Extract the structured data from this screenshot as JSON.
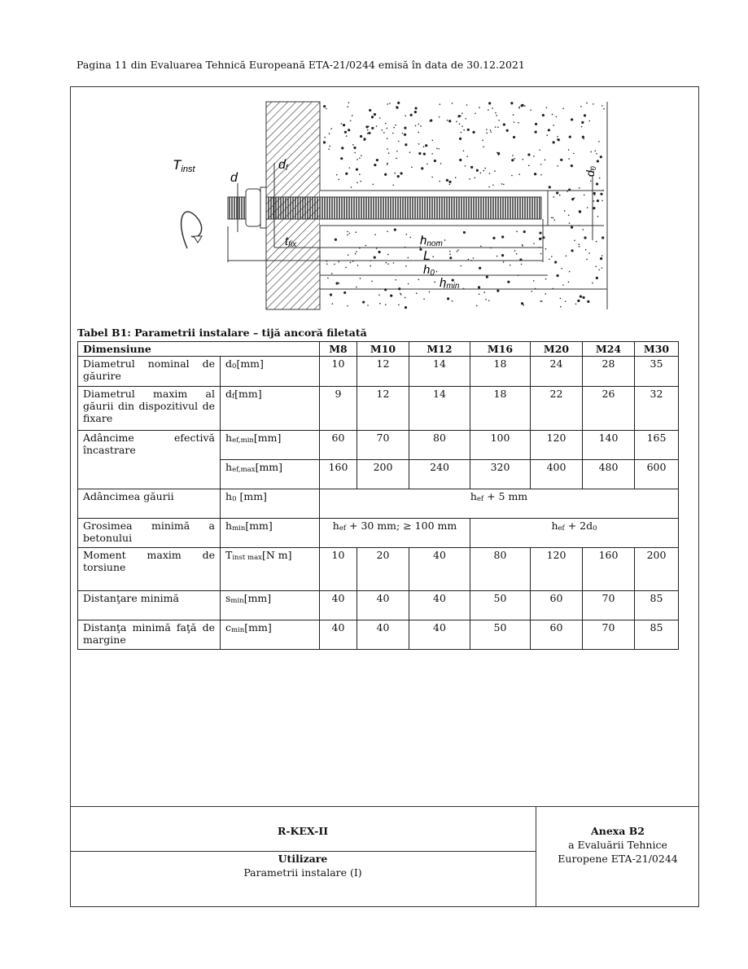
{
  "header": "Pagina 11 din Evaluarea Tehnică Europeană ETA-21/0244 emisă în data de 30.12.2021",
  "diagram": {
    "labels": {
      "tinst": "T",
      "tinst_sub": "inst",
      "d": "d",
      "df": "d",
      "df_sub": "f",
      "d0": "d",
      "d0_sub": "0",
      "tfix": "t",
      "tfix_sub": "fix",
      "hnom": "h",
      "hnom_sub": "nom",
      "L": "L",
      "h0": "h",
      "h0_sub": "0",
      "hmin": "h",
      "hmin_sub": "min"
    }
  },
  "table": {
    "caption": "Tabel B1: Parametrii instalare – tijă ancoră filetată",
    "header": {
      "label": "Dimensiune",
      "sizes": [
        "M8",
        "M10",
        "M12",
        "M16",
        "M20",
        "M24",
        "M30"
      ]
    },
    "rows": [
      {
        "desc": "Diametrul nominal de găurire",
        "sym": "d",
        "sub": "0",
        "unit": "[mm]",
        "values": [
          "10",
          "12",
          "14",
          "18",
          "24",
          "28",
          "35"
        ]
      },
      {
        "desc": "Diametrul maxim al găurii din dispozitivul de fixare",
        "sym": "d",
        "sub": "f",
        "unit": "[mm]",
        "values": [
          "9",
          "12",
          "14",
          "18",
          "22",
          "26",
          "32"
        ]
      },
      {
        "desc": "Adâncime efectivă încastrare",
        "sym": "h",
        "sub": "ef,min",
        "unit": "[mm]",
        "values": [
          "60",
          "70",
          "80",
          "100",
          "120",
          "140",
          "165"
        ]
      },
      {
        "sym": "h",
        "sub": "ef,max",
        "unit": "[mm]",
        "values": [
          "160",
          "200",
          "240",
          "320",
          "400",
          "480",
          "600"
        ]
      },
      {
        "desc": "Adâncimea găurii",
        "sym": "h",
        "sub": "0",
        "unit": " [mm]",
        "merged": {
          "a": "h",
          "a_sub": "ef",
          "b": " + 5 mm"
        }
      },
      {
        "desc": "Grosimea minimă a betonului",
        "sym": "h",
        "sub": "min",
        "unit": "[mm]",
        "merged1": {
          "a": "h",
          "a_sub": "ef",
          "b": " + 30 mm; ≥ 100 mm"
        },
        "merged2": {
          "a": "h",
          "a_sub": "ef",
          "b": " + 2d",
          "c_sub": "0"
        }
      },
      {
        "desc": "Moment maxim de torsiune",
        "sym": "T",
        "sub": "inst max",
        "unit": "[N m]",
        "values": [
          "10",
          "20",
          "40",
          "80",
          "120",
          "160",
          "200"
        ]
      },
      {
        "desc": "Distanţare minimă",
        "sym": "s",
        "sub": "min",
        "unit": "[mm]",
        "values": [
          "40",
          "40",
          "40",
          "50",
          "60",
          "70",
          "85"
        ]
      },
      {
        "desc": "Distanţa minimă faţă de margine",
        "sym": "c",
        "sub": "min",
        "unit": "[mm]",
        "values": [
          "40",
          "40",
          "40",
          "50",
          "60",
          "70",
          "85"
        ]
      }
    ]
  },
  "footer": {
    "product": "R-KEX-II",
    "section": "Utilizare",
    "subtitle": "Parametrii instalare  (I)",
    "annex": "Anexa B2",
    "annex_line2": "a Evaluării Tehnice",
    "annex_line3": "Europene ETA-21/0244"
  }
}
